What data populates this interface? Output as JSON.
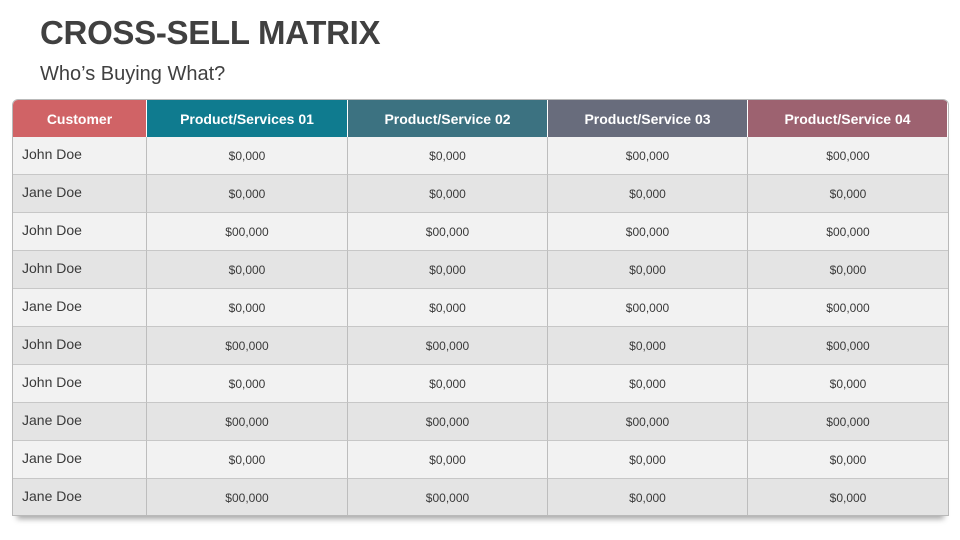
{
  "title": "CROSS-SELL MATRIX",
  "subtitle": "Who’s Buying What?",
  "header_colors": [
    "#d06366",
    "#0f7b8f",
    "#3c7281",
    "#686c7c",
    "#9d6270"
  ],
  "table": {
    "headers": [
      "Customer",
      "Product/Services 01",
      "Product/Service 02",
      "Product/Service 03",
      "Product/Service 04"
    ],
    "rows": [
      [
        "John Doe",
        "$0,000",
        "$0,000",
        "$00,000",
        "$00,000"
      ],
      [
        "Jane Doe",
        "$0,000",
        "$0,000",
        "$0,000",
        "$0,000"
      ],
      [
        "John Doe",
        "$00,000",
        "$00,000",
        "$00,000",
        "$00,000"
      ],
      [
        "John Doe",
        "$0,000",
        "$0,000",
        "$0,000",
        "$0,000"
      ],
      [
        "Jane Doe",
        "$0,000",
        "$0,000",
        "$00,000",
        "$00,000"
      ],
      [
        "John Doe",
        "$00,000",
        "$00,000",
        "$0,000",
        "$00,000"
      ],
      [
        "John Doe",
        "$0,000",
        "$0,000",
        "$0,000",
        "$0,000"
      ],
      [
        "Jane Doe",
        "$00,000",
        "$00,000",
        "$00,000",
        "$00,000"
      ],
      [
        "Jane Doe",
        "$0,000",
        "$0,000",
        "$0,000",
        "$0,000"
      ],
      [
        "Jane Doe",
        "$00,000",
        "$00,000",
        "$0,000",
        "$0,000"
      ]
    ]
  }
}
